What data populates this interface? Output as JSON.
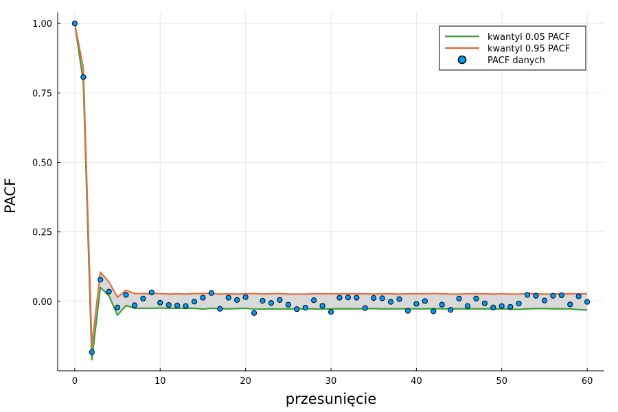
{
  "chart_data": {
    "type": "line",
    "xlabel": "przesunięcie",
    "ylabel": "PACF",
    "xlim": [
      -2,
      62
    ],
    "ylim": [
      -0.25,
      1.04
    ],
    "x_ticks": [
      0,
      10,
      20,
      30,
      40,
      50,
      60
    ],
    "y_ticks": [
      0.0,
      0.25,
      0.5,
      0.75,
      1.0
    ],
    "x_tick_labels": [
      "0",
      "10",
      "20",
      "30",
      "40",
      "50",
      "60"
    ],
    "y_tick_labels": [
      "0.00",
      "0.25",
      "0.50",
      "0.75",
      "1.00"
    ],
    "grid": true,
    "legend_position": "top-right",
    "x": [
      0,
      1,
      2,
      3,
      4,
      5,
      6,
      7,
      8,
      9,
      10,
      11,
      12,
      13,
      14,
      15,
      16,
      17,
      18,
      19,
      20,
      21,
      22,
      23,
      24,
      25,
      26,
      27,
      28,
      29,
      30,
      31,
      32,
      33,
      34,
      35,
      36,
      37,
      38,
      39,
      40,
      41,
      42,
      43,
      44,
      45,
      46,
      47,
      48,
      49,
      50,
      51,
      52,
      53,
      54,
      55,
      56,
      57,
      58,
      59,
      60
    ],
    "series": [
      {
        "name": "kwantyl 0.05 PACF",
        "kind": "line",
        "color": "#3a9e3a",
        "values": [
          1.0,
          0.79,
          -0.21,
          0.05,
          0.02,
          -0.05,
          -0.015,
          -0.025,
          -0.025,
          -0.025,
          -0.024,
          -0.025,
          -0.025,
          -0.025,
          -0.025,
          -0.028,
          -0.025,
          -0.027,
          -0.027,
          -0.026,
          -0.025,
          -0.028,
          -0.028,
          -0.027,
          -0.028,
          -0.027,
          -0.028,
          -0.027,
          -0.027,
          -0.028,
          -0.027,
          -0.027,
          -0.027,
          -0.027,
          -0.027,
          -0.026,
          -0.027,
          -0.027,
          -0.027,
          -0.027,
          -0.027,
          -0.027,
          -0.026,
          -0.027,
          -0.027,
          -0.027,
          -0.027,
          -0.027,
          -0.027,
          -0.027,
          -0.027,
          -0.028,
          -0.029,
          -0.027,
          -0.026,
          -0.026,
          -0.027,
          -0.027,
          -0.027,
          -0.03,
          -0.031
        ]
      },
      {
        "name": "kwantyl 0.95 PACF",
        "kind": "line",
        "color": "#e26f46",
        "values": [
          1.0,
          0.84,
          -0.16,
          0.105,
          0.07,
          0.015,
          0.04,
          0.028,
          0.028,
          0.028,
          0.028,
          0.026,
          0.027,
          0.026,
          0.028,
          0.028,
          0.029,
          0.026,
          0.027,
          0.026,
          0.027,
          0.028,
          0.026,
          0.027,
          0.028,
          0.026,
          0.026,
          0.026,
          0.027,
          0.027,
          0.027,
          0.027,
          0.027,
          0.027,
          0.027,
          0.026,
          0.027,
          0.027,
          0.026,
          0.027,
          0.027,
          0.027,
          0.028,
          0.027,
          0.026,
          0.026,
          0.027,
          0.027,
          0.027,
          0.026,
          0.027,
          0.026,
          0.026,
          0.028,
          0.027,
          0.026,
          0.026,
          0.027,
          0.027,
          0.027,
          0.027
        ]
      },
      {
        "name": "PACF danych",
        "kind": "scatter",
        "color": "#009af9",
        "values": [
          1.0,
          0.807,
          -0.183,
          0.078,
          0.035,
          -0.022,
          0.023,
          -0.014,
          0.01,
          0.032,
          -0.005,
          -0.013,
          -0.015,
          -0.017,
          -0.001,
          0.013,
          0.03,
          -0.027,
          0.013,
          0.005,
          0.015,
          -0.042,
          0.002,
          -0.006,
          0.005,
          -0.012,
          -0.028,
          -0.023,
          0.004,
          -0.016,
          -0.038,
          0.013,
          0.014,
          0.013,
          -0.024,
          0.012,
          0.011,
          -0.002,
          0.008,
          -0.034,
          -0.009,
          0.001,
          -0.036,
          -0.012,
          -0.031,
          0.01,
          -0.017,
          0.01,
          -0.007,
          -0.022,
          -0.017,
          -0.02,
          -0.008,
          0.023,
          0.02,
          0.003,
          0.02,
          0.022,
          -0.011,
          0.018,
          -0.002
        ]
      }
    ]
  }
}
